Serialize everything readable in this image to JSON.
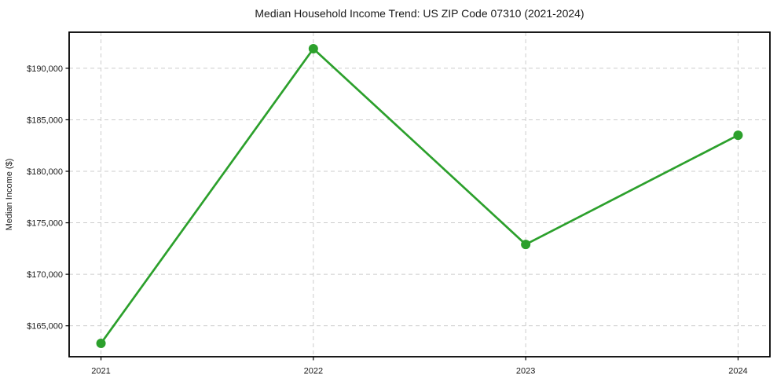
{
  "chart_data": {
    "type": "line",
    "title": "Median Household Income Trend: US ZIP Code 07310 (2021-2024)",
    "xlabel": "",
    "ylabel": "Median Income ($)",
    "x": [
      2021,
      2022,
      2023,
      2024
    ],
    "x_tick_labels": [
      "2021",
      "2022",
      "2023",
      "2024"
    ],
    "values": [
      163300,
      191900,
      172900,
      183500
    ],
    "yticks": [
      165000,
      170000,
      175000,
      180000,
      185000,
      190000
    ],
    "y_tick_labels": [
      "$165,000",
      "$170,000",
      "$175,000",
      "$180,000",
      "$185,000",
      "$190,000"
    ],
    "ylim": [
      162000,
      193500
    ],
    "xlim": [
      2020.85,
      2024.15
    ],
    "grid": true,
    "grid_line_style": "dashed",
    "legend_position": "none",
    "marker": "circle",
    "colors": {
      "line": "#2ca02c",
      "marker": "#2ca02c",
      "grid": "#cccccc",
      "axis": "#000000",
      "text": "#1a1a1a",
      "background": "#ffffff"
    }
  }
}
